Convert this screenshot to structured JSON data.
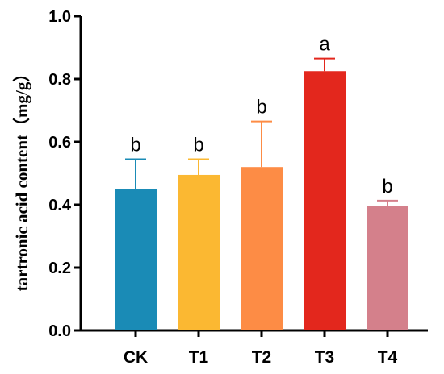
{
  "chart_data": {
    "type": "bar",
    "ylabel": "tartronic acid content（mg/g）",
    "xlabel": "",
    "ylim": [
      0,
      1.0
    ],
    "yticks": [
      "0.0",
      "0.2",
      "0.4",
      "0.6",
      "0.8",
      "1.0"
    ],
    "categories": [
      "CK",
      "T1",
      "T2",
      "T3",
      "T4"
    ],
    "values": [
      0.45,
      0.495,
      0.52,
      0.825,
      0.395
    ],
    "errors": [
      0.095,
      0.05,
      0.145,
      0.04,
      0.018
    ],
    "significance": [
      "b",
      "b",
      "b",
      "a",
      "b"
    ],
    "colors": [
      "#1a8bb6",
      "#fbb832",
      "#fd8c45",
      "#e3271d",
      "#d4808b"
    ],
    "grid": false,
    "legend": "none"
  }
}
